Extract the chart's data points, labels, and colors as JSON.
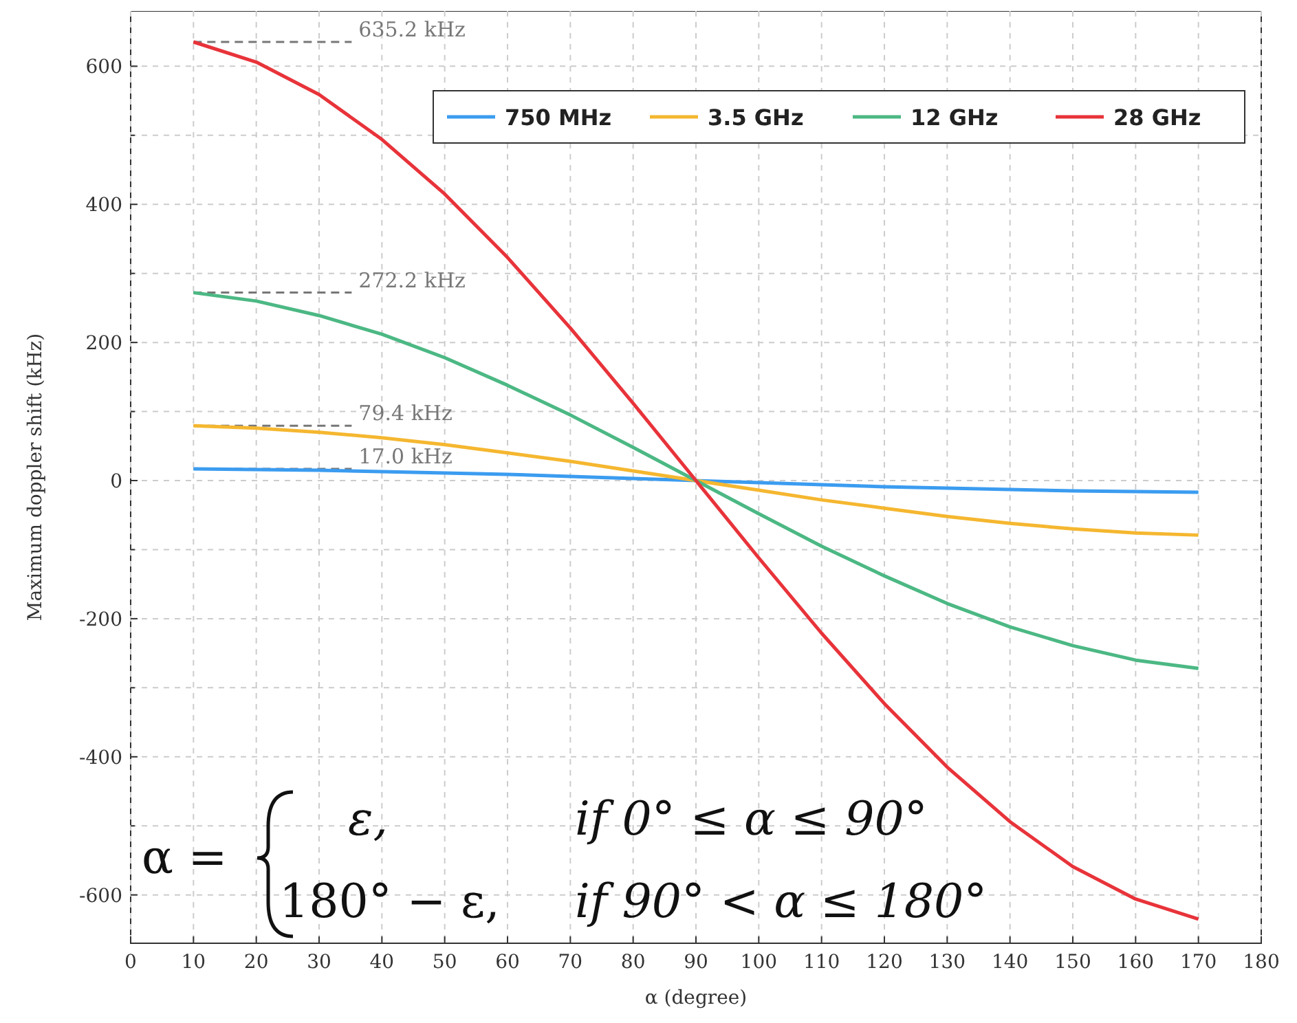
{
  "chart_data": {
    "type": "line",
    "xlabel": "α (degree)",
    "ylabel": "Maximum doppler shift (kHz)",
    "x": [
      10,
      20,
      30,
      40,
      50,
      60,
      70,
      80,
      90,
      100,
      110,
      120,
      130,
      140,
      150,
      160,
      170
    ],
    "xlim": [
      0,
      180
    ],
    "xticks": [
      0,
      10,
      20,
      30,
      40,
      50,
      60,
      70,
      80,
      90,
      100,
      110,
      120,
      130,
      140,
      150,
      160,
      170,
      180
    ],
    "ylim": [
      -670,
      680
    ],
    "yticks": [
      -600,
      {
        "value": -500,
        "label": null
      },
      -400,
      {
        "value": -300,
        "label": null
      },
      -200,
      {
        "value": -100,
        "label": null
      },
      0,
      {
        "value": 100,
        "label": null
      },
      200,
      {
        "value": 300,
        "label": null
      },
      400,
      {
        "value": 500,
        "label": null
      },
      600
    ],
    "grid": true,
    "legend": "top right",
    "line_style": "solid",
    "marker": "none",
    "series": [
      {
        "name": "750 MHz",
        "color": "#3b9cf0",
        "values": [
          17.0,
          16,
          15,
          13,
          11,
          9,
          6,
          3,
          0,
          -3,
          -6,
          -9,
          -11,
          -13,
          -15,
          -16,
          -17
        ],
        "value_labels": [
          "17.0 kHz",
          null,
          null,
          null,
          null,
          null,
          null,
          null,
          null,
          null,
          null,
          null,
          null,
          null,
          null,
          null,
          null
        ]
      },
      {
        "name": "3.5 GHz",
        "color": "#f5b730",
        "values": [
          79.4,
          76,
          70,
          62,
          52,
          40,
          28,
          14,
          0,
          -14,
          -28,
          -40,
          -52,
          -62,
          -70,
          -76,
          -79
        ],
        "value_labels": [
          "79.4 kHz",
          null,
          null,
          null,
          null,
          null,
          null,
          null,
          null,
          null,
          null,
          null,
          null,
          null,
          null,
          null,
          null
        ]
      },
      {
        "name": "12 GHz",
        "color": "#4cb884",
        "values": [
          272.2,
          260,
          239,
          212,
          178,
          138,
          95,
          48,
          0,
          -48,
          -95,
          -138,
          -178,
          -212,
          -239,
          -260,
          -272
        ],
        "value_labels": [
          "272.2 kHz",
          null,
          null,
          null,
          null,
          null,
          null,
          null,
          null,
          null,
          null,
          null,
          null,
          null,
          null,
          null,
          null
        ]
      },
      {
        "name": "28 GHz",
        "color": "#e8333a",
        "values": [
          635.2,
          606,
          559,
          494,
          415,
          323,
          221,
          112,
          0,
          -112,
          -221,
          -323,
          -415,
          -494,
          -559,
          -606,
          -635
        ],
        "value_labels": [
          "635.2 kHz",
          null,
          null,
          null,
          null,
          null,
          null,
          null,
          null,
          null,
          null,
          null,
          null,
          null,
          null,
          null,
          null
        ]
      }
    ],
    "annotations": [
      "α =",
      "ε,",
      "if 0° ≤ α ≤ 90°",
      "180° − ε,",
      "if 90° < α ≤ 180°"
    ]
  }
}
